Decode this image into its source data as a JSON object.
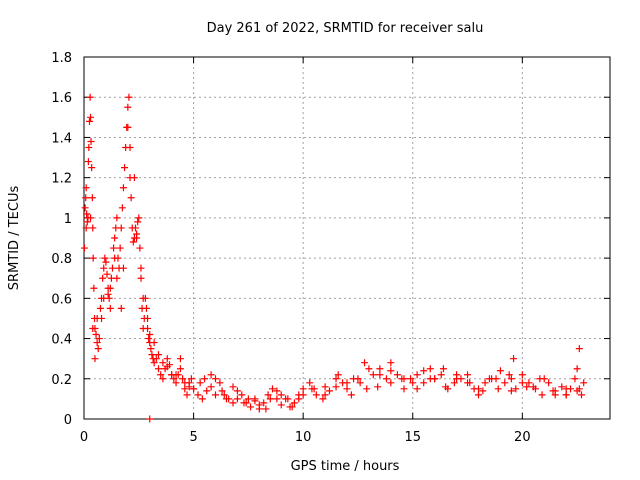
{
  "chart_data": {
    "type": "scatter",
    "title": "Day 261 of 2022, SRMTID for receiver salu",
    "xlabel": "GPS time / hours",
    "ylabel": "SRMTID / TECUs",
    "xlim": [
      0,
      24
    ],
    "ylim": [
      0,
      1.8
    ],
    "xticks": [
      0,
      5,
      10,
      15,
      20
    ],
    "xtick_labels": [
      "0",
      "5",
      "10",
      "15",
      "20"
    ],
    "yticks": [
      0,
      0.2,
      0.4,
      0.6,
      0.8,
      1.0,
      1.2,
      1.4,
      1.6,
      1.8
    ],
    "ytick_labels": [
      "0",
      "0.2",
      "0.4",
      "0.6",
      "0.8",
      "1",
      "1.2",
      "1.4",
      "1.6",
      "1.8"
    ],
    "grid": true,
    "marker": "+",
    "colors": {
      "series": "#ff0000",
      "grid": "#a0a0a0",
      "axis": "#000000"
    },
    "series": [
      {
        "name": "SRMTID",
        "x": [
          0.02,
          0.05,
          0.08,
          0.1,
          0.12,
          0.15,
          0.18,
          0.2,
          0.22,
          0.25,
          0.28,
          0.3,
          0.32,
          0.35,
          0.38,
          0.4,
          0.42,
          0.45,
          0.48,
          0.5,
          0.55,
          0.6,
          0.65,
          0.7,
          0.75,
          0.8,
          0.85,
          0.9,
          0.95,
          1.0,
          1.05,
          1.1,
          1.15,
          1.2,
          1.25,
          1.3,
          1.35,
          1.4,
          1.45,
          1.5,
          1.55,
          1.6,
          1.65,
          1.7,
          1.75,
          1.8,
          1.85,
          1.9,
          1.95,
          2.0,
          2.05,
          2.1,
          2.15,
          2.2,
          2.25,
          2.3,
          2.35,
          2.4,
          2.45,
          2.5,
          2.55,
          2.6,
          2.65,
          2.7,
          2.75,
          2.8,
          2.85,
          2.9,
          2.95,
          3.0,
          3.05,
          3.1,
          3.15,
          3.2,
          3.3,
          3.4,
          3.5,
          3.6,
          3.7,
          3.8,
          3.9,
          4.0,
          4.1,
          4.2,
          4.3,
          4.4,
          4.5,
          4.6,
          4.7,
          4.8,
          4.9,
          5.0,
          5.2,
          5.4,
          5.6,
          5.8,
          6.0,
          6.2,
          6.4,
          6.6,
          6.8,
          7.0,
          7.2,
          7.4,
          7.6,
          7.8,
          8.0,
          8.2,
          8.4,
          8.6,
          8.8,
          9.0,
          9.2,
          9.4,
          9.6,
          9.8,
          10.0,
          10.3,
          10.6,
          10.9,
          11.2,
          11.5,
          11.8,
          12.0,
          12.3,
          12.6,
          12.9,
          13.2,
          13.5,
          13.8,
          14.0,
          14.3,
          14.6,
          14.9,
          15.2,
          15.5,
          15.8,
          16.0,
          16.3,
          16.6,
          16.9,
          17.2,
          17.5,
          17.8,
          18.0,
          18.3,
          18.6,
          18.9,
          19.2,
          19.5,
          19.7,
          20.0,
          20.3,
          20.6,
          20.9,
          21.2,
          21.5,
          21.8,
          22.0,
          22.2,
          22.4,
          22.5,
          22.6,
          22.7,
          22.8,
          0.3,
          0.4,
          0.6,
          0.9,
          1.2,
          1.5,
          1.8,
          2.1,
          2.4,
          2.7,
          3.0,
          3.4,
          3.8,
          4.2,
          4.6,
          5.0,
          5.5,
          6.0,
          6.5,
          7.0,
          7.5,
          8.0,
          8.5,
          9.0,
          9.5,
          10.0,
          10.5,
          11.0,
          11.5,
          12.0,
          12.5,
          13.0,
          13.5,
          14.0,
          14.5,
          15.0,
          15.5,
          16.0,
          16.5,
          17.0,
          17.5,
          18.0,
          18.5,
          19.0,
          19.5,
          20.0,
          20.5,
          21.0,
          21.5,
          22.0,
          22.5,
          0.1,
          0.5,
          0.8,
          1.1,
          1.4,
          1.7,
          2.0,
          2.3,
          2.6,
          2.9,
          3.2,
          3.6,
          4.0,
          4.4,
          4.8,
          5.3,
          5.8,
          6.3,
          6.8,
          7.3,
          7.8,
          8.3,
          8.8,
          9.3,
          9.8,
          10.4,
          11.0,
          11.6,
          12.2,
          12.8,
          13.4,
          14.0,
          14.6,
          15.2,
          15.8,
          16.4,
          17.0,
          17.6,
          18.2,
          18.8,
          19.4,
          19.6,
          20.2,
          20.8,
          21.4,
          22.0,
          22.6,
          3.0
        ],
        "y": [
          0.85,
          1.05,
          1.1,
          0.95,
          1.02,
          0.98,
          1.0,
          1.28,
          1.35,
          1.48,
          1.6,
          1.5,
          1.38,
          1.25,
          1.1,
          0.95,
          0.8,
          0.65,
          0.5,
          0.45,
          0.42,
          0.38,
          0.35,
          0.4,
          0.55,
          0.6,
          0.7,
          0.75,
          0.8,
          0.78,
          0.72,
          0.65,
          0.6,
          0.55,
          0.7,
          0.75,
          0.85,
          0.9,
          0.95,
          1.0,
          0.8,
          0.75,
          0.85,
          0.95,
          1.05,
          1.15,
          1.25,
          1.35,
          1.45,
          1.55,
          1.6,
          1.35,
          1.1,
          0.95,
          0.88,
          0.9,
          0.95,
          0.92,
          0.98,
          1.0,
          0.85,
          0.7,
          0.55,
          0.45,
          0.5,
          0.6,
          0.55,
          0.45,
          0.4,
          0.38,
          0.35,
          0.32,
          0.3,
          0.28,
          0.3,
          0.25,
          0.22,
          0.2,
          0.25,
          0.3,
          0.27,
          0.22,
          0.2,
          0.18,
          0.22,
          0.25,
          0.2,
          0.15,
          0.12,
          0.18,
          0.2,
          0.15,
          0.12,
          0.1,
          0.14,
          0.16,
          0.2,
          0.18,
          0.12,
          0.1,
          0.08,
          0.1,
          0.12,
          0.08,
          0.06,
          0.1,
          0.05,
          0.08,
          0.12,
          0.15,
          0.1,
          0.07,
          0.1,
          0.06,
          0.08,
          0.12,
          0.15,
          0.18,
          0.12,
          0.1,
          0.14,
          0.16,
          0.18,
          0.15,
          0.2,
          0.18,
          0.15,
          0.22,
          0.25,
          0.2,
          0.18,
          0.22,
          0.15,
          0.2,
          0.22,
          0.18,
          0.25,
          0.2,
          0.22,
          0.15,
          0.18,
          0.2,
          0.22,
          0.15,
          0.12,
          0.18,
          0.2,
          0.15,
          0.18,
          0.2,
          0.15,
          0.22,
          0.18,
          0.15,
          0.12,
          0.18,
          0.14,
          0.16,
          0.12,
          0.15,
          0.2,
          0.25,
          0.15,
          0.12,
          0.18,
          1.0,
          0.45,
          0.5,
          0.6,
          0.65,
          0.7,
          0.75,
          1.2,
          0.9,
          0.6,
          0.42,
          0.32,
          0.26,
          0.22,
          0.18,
          0.15,
          0.2,
          0.12,
          0.1,
          0.14,
          0.1,
          0.07,
          0.1,
          0.12,
          0.06,
          0.12,
          0.15,
          0.16,
          0.2,
          0.18,
          0.2,
          0.25,
          0.22,
          0.28,
          0.2,
          0.18,
          0.24,
          0.2,
          0.16,
          0.22,
          0.18,
          0.15,
          0.2,
          0.24,
          0.14,
          0.18,
          0.16,
          0.2,
          0.12,
          0.15,
          0.14,
          1.15,
          0.3,
          0.5,
          0.62,
          0.8,
          0.55,
          1.45,
          1.2,
          0.75,
          0.5,
          0.38,
          0.28,
          0.22,
          0.3,
          0.16,
          0.18,
          0.22,
          0.14,
          0.16,
          0.08,
          0.09,
          0.05,
          0.14,
          0.1,
          0.1,
          0.15,
          0.12,
          0.22,
          0.12,
          0.28,
          0.16,
          0.24,
          0.2,
          0.15,
          0.2,
          0.25,
          0.2,
          0.18,
          0.14,
          0.2,
          0.22,
          0.3,
          0.16,
          0.2,
          0.14,
          0.12,
          0.35,
          0.0
        ]
      }
    ]
  }
}
